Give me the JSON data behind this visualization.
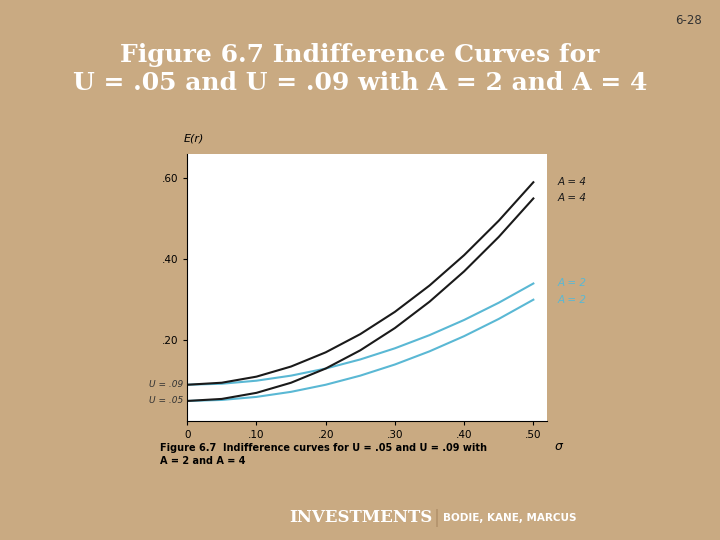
{
  "title": "Figure 6.7 Indifference Curves for\nU = .05 and U = .09 with A = 2 and A = 4",
  "slide_label": "6-28",
  "background_color": "#c9aa82",
  "header_bg": "#1a237e",
  "header_text_color": "#ffffff",
  "footer_bg": "#1a237e",
  "footer_text": "INVESTMENTS",
  "footer_sep": "|",
  "footer_subtext": "BODIE, KANE, MARCUS",
  "chart_bg": "#ffffff",
  "chart_panel_bg": "#d8ecf5",
  "caption_panel_bg": "#cde4f0",
  "sigma_values": [
    0,
    0.05,
    0.1,
    0.15,
    0.2,
    0.25,
    0.3,
    0.35,
    0.4,
    0.45,
    0.5
  ],
  "U_values": [
    0.05,
    0.09
  ],
  "A_values": [
    2,
    4
  ],
  "curve_color_A2": "#5ab8d4",
  "curve_color_A4": "#1a1a1a",
  "xlim": [
    0,
    0.52
  ],
  "ylim": [
    0,
    0.66
  ],
  "xticks": [
    0,
    0.1,
    0.2,
    0.3,
    0.4,
    0.5
  ],
  "xticklabels": [
    "0",
    ".10",
    ".20",
    ".30",
    ".40",
    ".50"
  ],
  "yticks": [
    0.2,
    0.4,
    0.6
  ],
  "yticklabels": [
    ".20",
    ".40",
    ".60"
  ],
  "xlabel": "σ",
  "ylabel": "E(r)",
  "caption": "Figure 6.7  Indifference curves for U = .05 and U = .09 with\nA = 2 and A = 4",
  "right_labels": [
    {
      "U": 0.09,
      "A": 4,
      "text": "A = 4",
      "color": "#1a1a1a"
    },
    {
      "U": 0.05,
      "A": 4,
      "text": "A = 4",
      "color": "#1a1a1a"
    },
    {
      "U": 0.09,
      "A": 2,
      "text": "A = 2",
      "color": "#5ab8d4"
    },
    {
      "U": 0.05,
      "A": 2,
      "text": "A = 2",
      "color": "#5ab8d4"
    }
  ],
  "left_labels": [
    {
      "U": 0.09,
      "text": "U = .09"
    },
    {
      "U": 0.05,
      "text": "U = .05"
    }
  ]
}
